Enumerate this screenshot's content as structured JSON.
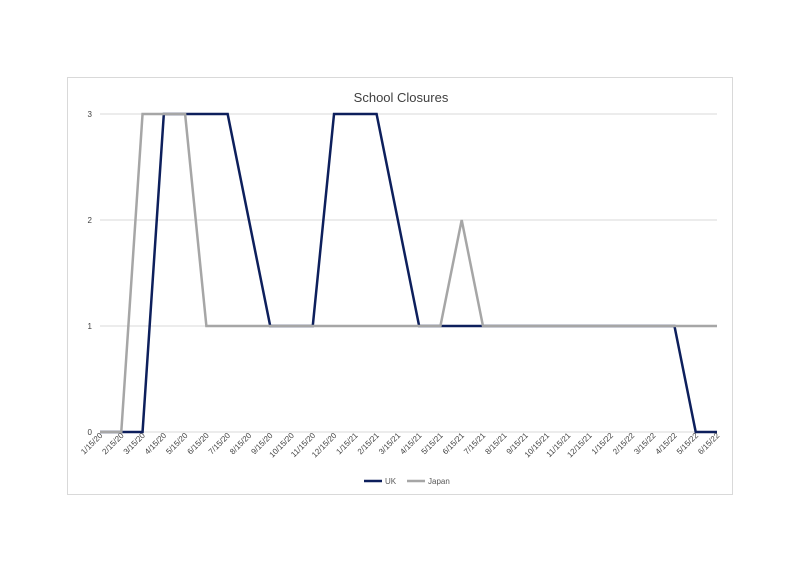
{
  "chart_data": {
    "type": "line",
    "title": "School Closures",
    "xlabel": "",
    "ylabel": "",
    "ylim": [
      0,
      3
    ],
    "yticks": [
      "0",
      "1",
      "2",
      "3"
    ],
    "grid": true,
    "legend_position": "bottom",
    "categories": [
      "1/15/20",
      "2/15/20",
      "3/15/20",
      "4/15/20",
      "5/15/20",
      "6/15/20",
      "7/15/20",
      "8/15/20",
      "9/15/20",
      "10/15/20",
      "11/15/20",
      "12/15/20",
      "1/15/21",
      "2/15/21",
      "3/15/21",
      "4/15/21",
      "5/15/21",
      "6/15/21",
      "7/15/21",
      "8/15/21",
      "9/15/21",
      "10/15/21",
      "11/15/21",
      "12/15/21",
      "1/15/22",
      "2/15/22",
      "3/15/22",
      "4/15/22",
      "5/15/22",
      "6/15/22"
    ],
    "series": [
      {
        "name": "UK",
        "color": "#0d1f5c",
        "values": [
          0,
          0,
          0,
          3,
          3,
          3,
          3,
          2,
          1,
          1,
          1,
          3,
          3,
          3,
          2,
          1,
          1,
          1,
          1,
          1,
          1,
          1,
          1,
          1,
          1,
          1,
          1,
          1,
          0,
          0
        ]
      },
      {
        "name": "Japan",
        "color": "#a6a6a6",
        "values": [
          0,
          0,
          3,
          3,
          3,
          1,
          1,
          1,
          1,
          1,
          1,
          1,
          1,
          1,
          1,
          1,
          1,
          2,
          1,
          1,
          1,
          1,
          1,
          1,
          1,
          1,
          1,
          1,
          1,
          1
        ]
      }
    ]
  }
}
